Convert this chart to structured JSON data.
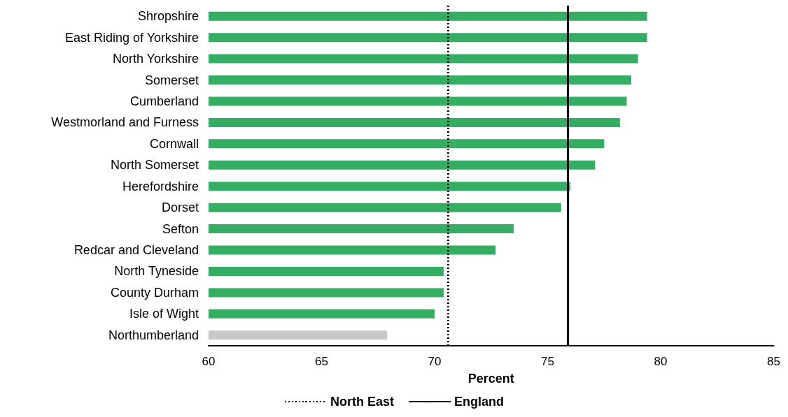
{
  "chart_data": {
    "type": "bar",
    "orientation": "horizontal",
    "xlabel": "Percent",
    "categories": [
      "Shropshire",
      "East Riding of Yorkshire",
      "North Yorkshire",
      "Somerset",
      "Cumberland",
      "Westmorland and Furness",
      "Cornwall",
      "North Somerset",
      "Herefordshire",
      "Dorset",
      "Sefton",
      "Redcar and Cleveland",
      "North Tyneside",
      "County Durham",
      "Isle of Wight",
      "Northumberland"
    ],
    "values": [
      79.4,
      79.4,
      79.0,
      78.7,
      78.5,
      78.2,
      77.5,
      77.1,
      76.0,
      75.6,
      73.5,
      72.7,
      70.4,
      70.4,
      70.0,
      67.9
    ],
    "colors": [
      "#33ae62",
      "#33ae62",
      "#33ae62",
      "#33ae62",
      "#33ae62",
      "#33ae62",
      "#33ae62",
      "#33ae62",
      "#33ae62",
      "#33ae62",
      "#33ae62",
      "#33ae62",
      "#33ae62",
      "#33ae62",
      "#33ae62",
      "#c8c8c8"
    ],
    "xlim": [
      60,
      85
    ],
    "xticks": [
      60,
      65,
      70,
      75,
      80,
      85
    ],
    "grid": false,
    "legend": "bottom",
    "ref_lines": [
      {
        "axis": "x",
        "value": 70.6,
        "label": "North East",
        "color": "#000000",
        "line_style": "dotted"
      },
      {
        "axis": "x",
        "value": 75.9,
        "label": "England",
        "color": "#000000",
        "line_style": "solid"
      }
    ]
  }
}
